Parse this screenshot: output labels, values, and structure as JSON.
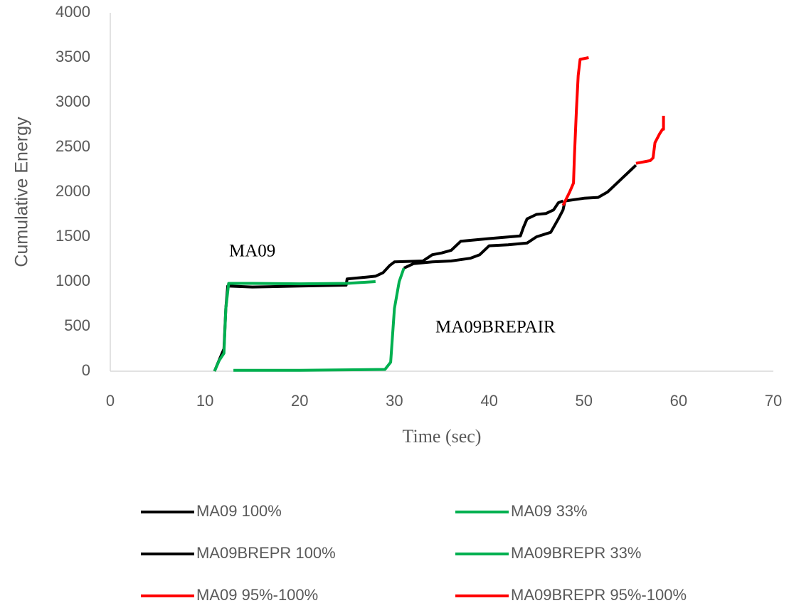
{
  "chart_data": {
    "type": "line",
    "x_label": "Time (sec)",
    "y_label": "Cumulative Energy",
    "xlim": [
      0,
      70
    ],
    "xticks": [
      0,
      10,
      20,
      30,
      40,
      50,
      60,
      70
    ],
    "ylim": [
      0,
      4000
    ],
    "yticks": [
      0,
      500,
      1000,
      1500,
      2000,
      2500,
      3000,
      3500,
      4000
    ],
    "grid": false,
    "annotations": [
      "MA09",
      "MA09BREPAIR"
    ],
    "series": [
      {
        "name": "MA09 100%",
        "color": "#000000",
        "x": [
          11,
          11.6,
          12,
          12.2,
          12.4,
          15,
          20,
          24.9,
          25,
          27,
          28,
          28.8,
          29.5,
          30,
          33,
          34,
          35,
          36,
          36.5,
          37,
          40,
          43.3,
          43.6,
          44,
          45,
          46,
          46.8,
          47.3,
          47.8
        ],
        "values": [
          0,
          150,
          250,
          700,
          950,
          940,
          950,
          960,
          1030,
          1050,
          1060,
          1100,
          1180,
          1220,
          1230,
          1300,
          1320,
          1350,
          1400,
          1450,
          1480,
          1510,
          1600,
          1700,
          1750,
          1760,
          1800,
          1880,
          1900
        ]
      },
      {
        "name": "MA09 33%",
        "color": "#00b050",
        "x": [
          11,
          11.5,
          12,
          12.2,
          12.5,
          15,
          20,
          25,
          28
        ],
        "values": [
          0,
          120,
          200,
          700,
          980,
          980,
          975,
          980,
          1000
        ]
      },
      {
        "name": "MA09BREPR 100%",
        "color": "#000000",
        "x": [
          31,
          32,
          34,
          36,
          38,
          39,
          40,
          42,
          44,
          45,
          46.5,
          47.3,
          47.8,
          48,
          50,
          51.5,
          52.5,
          53,
          54,
          55,
          55.5
        ],
        "values": [
          1150,
          1200,
          1220,
          1230,
          1260,
          1300,
          1400,
          1410,
          1430,
          1500,
          1550,
          1700,
          1800,
          1900,
          1930,
          1940,
          2000,
          2050,
          2150,
          2250,
          2300
        ]
      },
      {
        "name": "MA09BREPR 33%",
        "color": "#00b050",
        "x": [
          13,
          20,
          29,
          29.6,
          30,
          30.5,
          31
        ],
        "values": [
          10,
          10,
          20,
          100,
          700,
          1000,
          1150
        ]
      },
      {
        "name": "MA09 95%-100%",
        "color": "#ff0000",
        "x": [
          47.8,
          48.5,
          48.9,
          49,
          49.2,
          49.4,
          49.6,
          50.5
        ],
        "values": [
          1850,
          2000,
          2100,
          2400,
          2900,
          3300,
          3480,
          3500
        ]
      },
      {
        "name": "MA09BREPR 95%-100%",
        "color": "#ff0000",
        "x": [
          55.5,
          57,
          57.3,
          57.5,
          58,
          58.3,
          58.4,
          58.4
        ],
        "values": [
          2320,
          2350,
          2380,
          2550,
          2650,
          2700,
          2700,
          2850
        ]
      }
    ]
  }
}
